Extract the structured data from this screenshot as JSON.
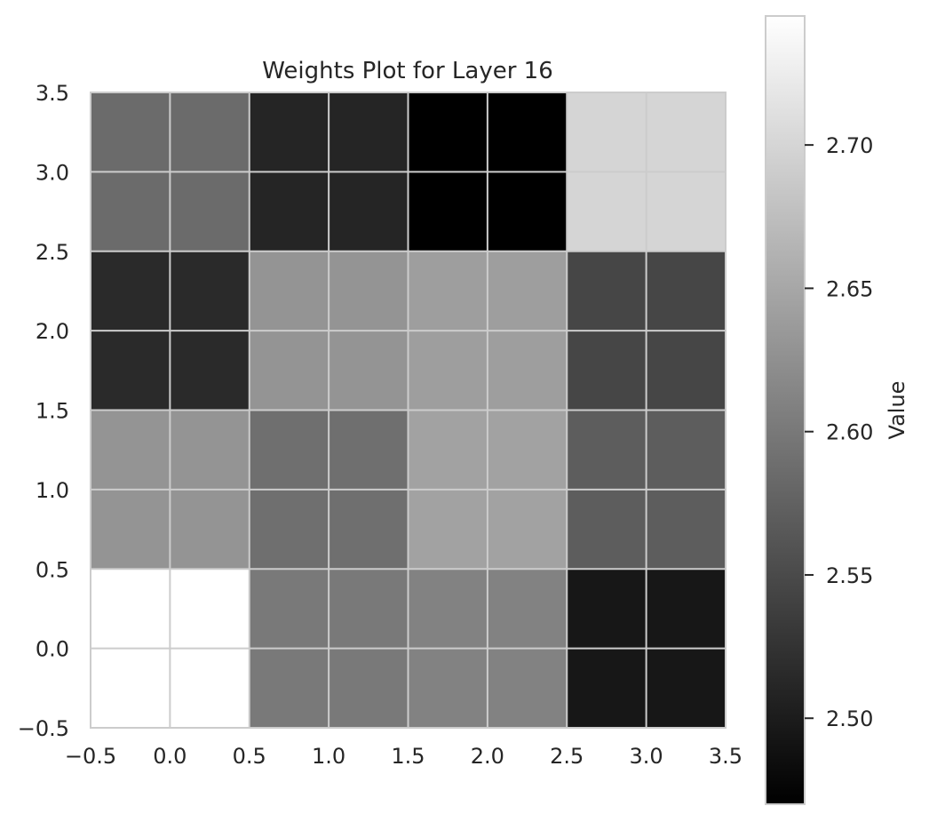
{
  "chart_data": {
    "type": "heatmap",
    "title": "Weights Plot for Layer 16",
    "xlabel": "",
    "ylabel": "",
    "xlim": [
      -0.5,
      3.5
    ],
    "ylim": [
      3.5,
      -0.5
    ],
    "x_ticks": [
      "−0.5",
      "0.0",
      "0.5",
      "1.0",
      "1.5",
      "2.0",
      "2.5",
      "3.0",
      "3.5"
    ],
    "y_ticks": [
      "−0.5",
      "0.0",
      "0.5",
      "1.0",
      "1.5",
      "2.0",
      "2.5",
      "3.0",
      "3.5"
    ],
    "grid": true,
    "colormap": "gray",
    "values": [
      [
        2.585,
        2.51,
        2.47,
        2.7
      ],
      [
        2.515,
        2.63,
        2.64,
        2.545
      ],
      [
        2.63,
        2.59,
        2.645,
        2.57
      ],
      [
        2.745,
        2.6,
        2.61,
        2.495
      ]
    ],
    "colorbar": {
      "label": "Value",
      "range": [
        2.47,
        2.745
      ],
      "ticks": [
        2.5,
        2.55,
        2.6,
        2.65,
        2.7
      ],
      "tick_labels": [
        "2.50",
        "2.55",
        "2.60",
        "2.65",
        "2.70"
      ]
    }
  },
  "colors": {
    "grid": "#cccccc",
    "frame": "#cccccc",
    "text": "#262626",
    "background": "#ffffff"
  }
}
